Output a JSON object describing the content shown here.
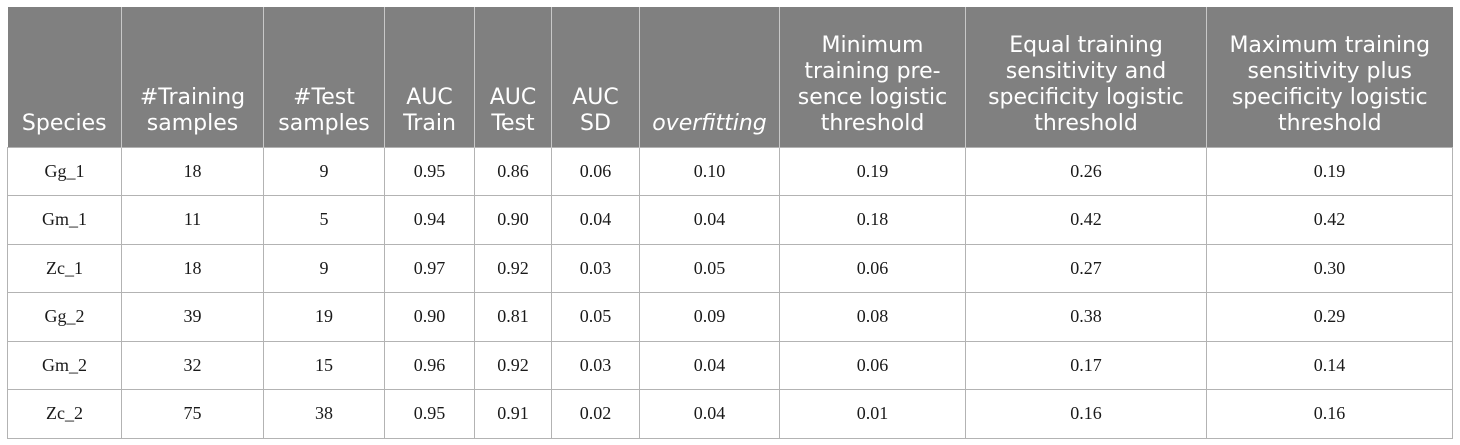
{
  "table": {
    "headers": [
      "Species",
      "#Training samples",
      "#Test samples",
      "AUC Train",
      "AUC Test",
      "AUC SD",
      "overfitting",
      "Minimum training pre-sence logistic threshold",
      "Equal training sensitivity and specificity logistic threshold",
      "Maximum training sensitivity plus specificity logistic threshold"
    ],
    "rows": [
      [
        "Gg_1",
        "18",
        "9",
        "0.95",
        "0.86",
        "0.06",
        "0.10",
        "0.19",
        "0.26",
        "0.19"
      ],
      [
        "Gm_1",
        "11",
        "5",
        "0.94",
        "0.90",
        "0.04",
        "0.04",
        "0.18",
        "0.42",
        "0.42"
      ],
      [
        "Zc_1",
        "18",
        "9",
        "0.97",
        "0.92",
        "0.03",
        "0.05",
        "0.06",
        "0.27",
        "0.30"
      ],
      [
        "Gg_2",
        "39",
        "19",
        "0.90",
        "0.81",
        "0.05",
        "0.09",
        "0.08",
        "0.38",
        "0.29"
      ],
      [
        "Gm_2",
        "32",
        "15",
        "0.96",
        "0.92",
        "0.03",
        "0.04",
        "0.06",
        "0.17",
        "0.14"
      ],
      [
        "Zc_2",
        "75",
        "38",
        "0.95",
        "0.91",
        "0.02",
        "0.04",
        "0.01",
        "0.16",
        "0.16"
      ]
    ]
  },
  "colors": {
    "header_background": "#808080",
    "header_text": "#ffffff",
    "grid_lines": "#b3b3b3",
    "cell_text": "#1a1a1a"
  }
}
